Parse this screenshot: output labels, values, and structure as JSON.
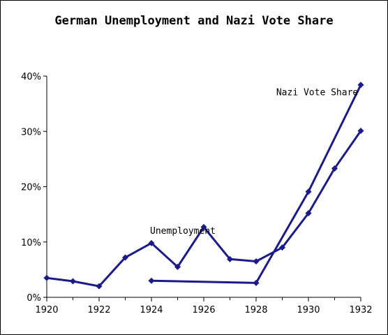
{
  "chart_data": {
    "type": "line",
    "title": "German Unemployment and Nazi Vote Share",
    "xlabel": "",
    "ylabel": "",
    "xlim": [
      1920,
      1932
    ],
    "ylim": [
      0,
      40
    ],
    "x_ticks": [
      "1920",
      "1922",
      "1924",
      "1926",
      "1928",
      "1930",
      "1932"
    ],
    "x_tick_values": [
      1920,
      1922,
      1924,
      1926,
      1928,
      1930,
      1932
    ],
    "y_ticks": [
      "0%",
      "10%",
      "20%",
      "30%",
      "40%"
    ],
    "y_tick_values": [
      0,
      10,
      20,
      30,
      40
    ],
    "grid": false,
    "legend": "none",
    "color": "#1a1a8c",
    "series": [
      {
        "name": "Unemployment",
        "x": [
          1920,
          1921,
          1922,
          1923,
          1924,
          1925,
          1926,
          1927,
          1928,
          1929,
          1930,
          1931,
          1932
        ],
        "values": [
          3.5,
          2.9,
          2.0,
          7.2,
          9.8,
          5.5,
          12.7,
          6.9,
          6.5,
          9.0,
          15.2,
          23.3,
          30.1
        ]
      },
      {
        "name": "Nazi Vote Share",
        "x": [
          1924,
          1928,
          1930,
          1932
        ],
        "values": [
          3.0,
          2.6,
          19.1,
          38.4
        ]
      }
    ],
    "annotations": [
      {
        "text": "Unemployment",
        "x": 1925.2,
        "y": 11.5
      },
      {
        "text": "Nazi Vote Share",
        "x": 1931.9,
        "y": 36.5
      }
    ]
  }
}
